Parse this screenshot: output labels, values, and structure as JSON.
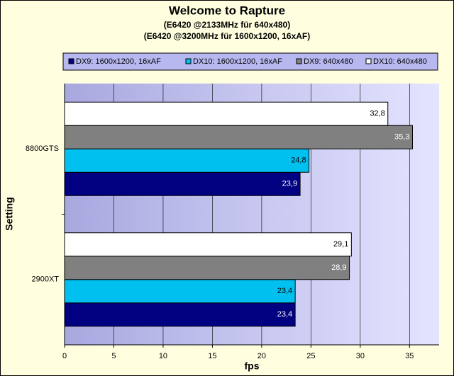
{
  "chart_data": {
    "type": "hbar",
    "title": "Welcome to Rapture",
    "subtitle": [
      "(E6420 @2133MHz für 640x480)",
      "(E6420 @3200MHz für 1600x1200, 16xAF)"
    ],
    "x_label": "fps",
    "y_label": "Setting",
    "categories": [
      "8800GTS",
      "2900XT"
    ],
    "series": [
      {
        "name": "DX9: 1600x1200, 16xAF",
        "color": "#000080",
        "values": [
          23.9,
          23.4
        ],
        "value_labels": [
          "23,9",
          "23,4"
        ]
      },
      {
        "name": "DX10: 1600x1200, 16xAF",
        "color": "#00c0f0",
        "values": [
          24.8,
          23.4
        ],
        "value_labels": [
          "24,8",
          "23,4"
        ]
      },
      {
        "name": "DX9: 640x480",
        "color": "#808080",
        "values": [
          35.3,
          28.9
        ],
        "value_labels": [
          "35,3",
          "28,9"
        ]
      },
      {
        "name": "DX10: 640x480",
        "color": "#ffffff",
        "values": [
          32.8,
          29.1
        ],
        "value_labels": [
          "32,8",
          "29,1"
        ]
      }
    ],
    "xlim": [
      0,
      38
    ],
    "xticks": [
      0,
      5,
      10,
      15,
      20,
      25,
      30,
      35
    ],
    "grid": true
  }
}
